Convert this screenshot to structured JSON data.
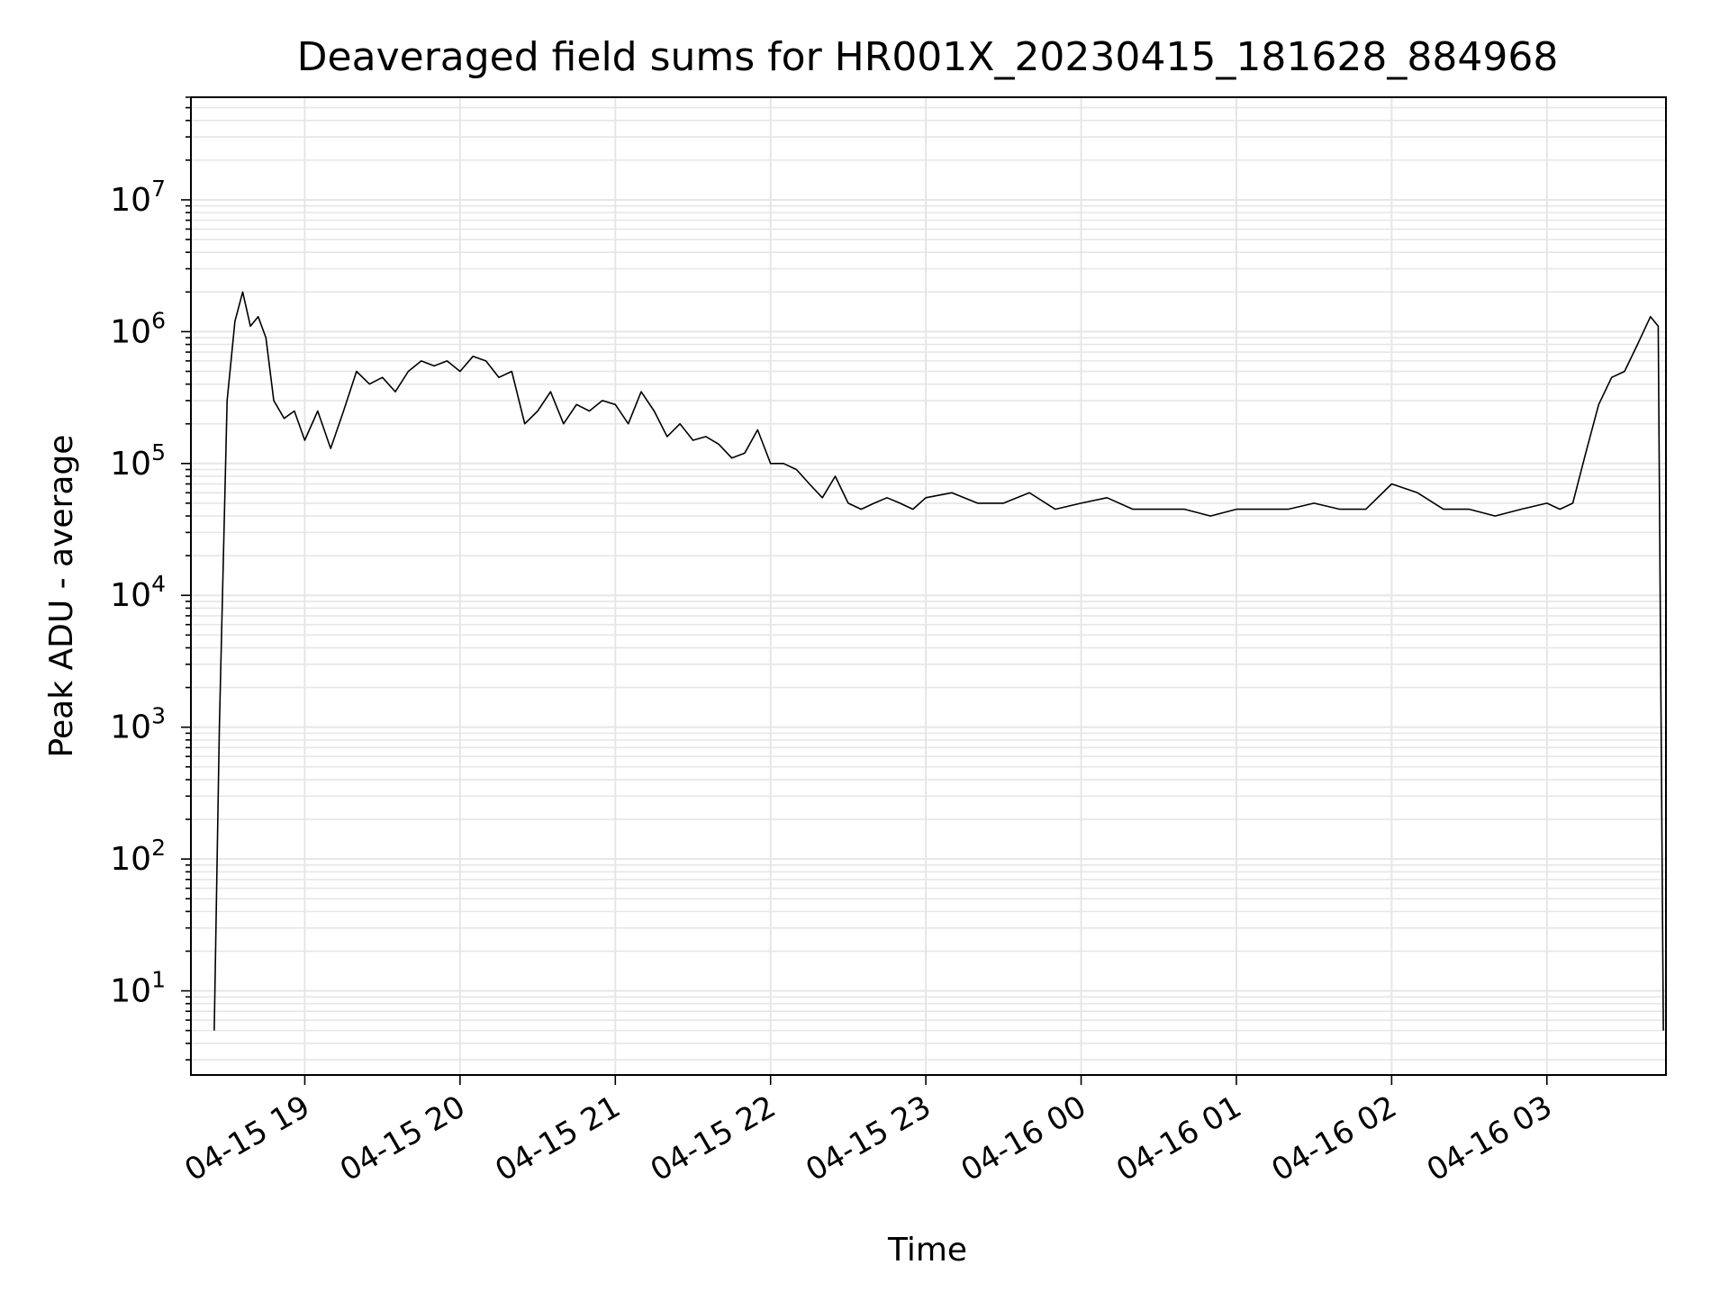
{
  "chart_data": {
    "type": "line",
    "title": "Deaveraged field sums for HR001X_20230415_181628_884968",
    "xlabel": "Time",
    "ylabel": "Peak ADU - average",
    "yscale": "log",
    "ylim": [
      2.3,
      60000000
    ],
    "xlim": [
      "2023-04-15 18:16",
      "2023-04-16 03:46"
    ],
    "grid": true,
    "line_color": "#000000",
    "grid_color": "#e6e6e6",
    "x_ticks": [
      {
        "t": "2023-04-15 19:00",
        "label": "04-15 19"
      },
      {
        "t": "2023-04-15 20:00",
        "label": "04-15 20"
      },
      {
        "t": "2023-04-15 21:00",
        "label": "04-15 21"
      },
      {
        "t": "2023-04-15 22:00",
        "label": "04-15 22"
      },
      {
        "t": "2023-04-15 23:00",
        "label": "04-15 23"
      },
      {
        "t": "2023-04-16 00:00",
        "label": "04-16 00"
      },
      {
        "t": "2023-04-16 01:00",
        "label": "04-16 01"
      },
      {
        "t": "2023-04-16 02:00",
        "label": "04-16 02"
      },
      {
        "t": "2023-04-16 03:00",
        "label": "04-16 03"
      }
    ],
    "y_ticks": [
      {
        "value": 10,
        "base": "10",
        "exp": "1"
      },
      {
        "value": 100,
        "base": "10",
        "exp": "2"
      },
      {
        "value": 1000,
        "base": "10",
        "exp": "3"
      },
      {
        "value": 10000,
        "base": "10",
        "exp": "4"
      },
      {
        "value": 100000,
        "base": "10",
        "exp": "5"
      },
      {
        "value": 1000000,
        "base": "10",
        "exp": "6"
      },
      {
        "value": 10000000,
        "base": "10",
        "exp": "7"
      }
    ],
    "series": [
      {
        "x": [
          "2023-04-15 18:25",
          "2023-04-15 18:27",
          "2023-04-15 18:30",
          "2023-04-15 18:33",
          "2023-04-15 18:36",
          "2023-04-15 18:39",
          "2023-04-15 18:42",
          "2023-04-15 18:45",
          "2023-04-15 18:48",
          "2023-04-15 18:52",
          "2023-04-15 18:56",
          "2023-04-15 19:00",
          "2023-04-15 19:05",
          "2023-04-15 19:10",
          "2023-04-15 19:15",
          "2023-04-15 19:20",
          "2023-04-15 19:25",
          "2023-04-15 19:30",
          "2023-04-15 19:35",
          "2023-04-15 19:40",
          "2023-04-15 19:45",
          "2023-04-15 19:50",
          "2023-04-15 19:55",
          "2023-04-15 20:00",
          "2023-04-15 20:05",
          "2023-04-15 20:10",
          "2023-04-15 20:15",
          "2023-04-15 20:20",
          "2023-04-15 20:25",
          "2023-04-15 20:30",
          "2023-04-15 20:35",
          "2023-04-15 20:40",
          "2023-04-15 20:45",
          "2023-04-15 20:50",
          "2023-04-15 20:55",
          "2023-04-15 21:00",
          "2023-04-15 21:05",
          "2023-04-15 21:10",
          "2023-04-15 21:15",
          "2023-04-15 21:20",
          "2023-04-15 21:25",
          "2023-04-15 21:30",
          "2023-04-15 21:35",
          "2023-04-15 21:40",
          "2023-04-15 21:45",
          "2023-04-15 21:50",
          "2023-04-15 21:55",
          "2023-04-15 22:00",
          "2023-04-15 22:05",
          "2023-04-15 22:10",
          "2023-04-15 22:15",
          "2023-04-15 22:20",
          "2023-04-15 22:25",
          "2023-04-15 22:30",
          "2023-04-15 22:35",
          "2023-04-15 22:40",
          "2023-04-15 22:45",
          "2023-04-15 22:50",
          "2023-04-15 22:55",
          "2023-04-15 23:00",
          "2023-04-15 23:10",
          "2023-04-15 23:20",
          "2023-04-15 23:30",
          "2023-04-15 23:40",
          "2023-04-15 23:50",
          "2023-04-16 00:00",
          "2023-04-16 00:10",
          "2023-04-16 00:20",
          "2023-04-16 00:30",
          "2023-04-16 00:40",
          "2023-04-16 00:50",
          "2023-04-16 01:00",
          "2023-04-16 01:10",
          "2023-04-16 01:20",
          "2023-04-16 01:30",
          "2023-04-16 01:40",
          "2023-04-16 01:50",
          "2023-04-16 02:00",
          "2023-04-16 02:10",
          "2023-04-16 02:20",
          "2023-04-16 02:30",
          "2023-04-16 02:40",
          "2023-04-16 02:50",
          "2023-04-16 03:00",
          "2023-04-16 03:05",
          "2023-04-16 03:10",
          "2023-04-16 03:15",
          "2023-04-16 03:20",
          "2023-04-16 03:25",
          "2023-04-16 03:30",
          "2023-04-16 03:35",
          "2023-04-16 03:40",
          "2023-04-16 03:43",
          "2023-04-16 03:45"
        ],
        "y": [
          5,
          1000,
          300000,
          1200000,
          2000000,
          1100000,
          1300000,
          900000,
          300000,
          220000,
          250000,
          150000,
          250000,
          130000,
          250000,
          500000,
          400000,
          450000,
          350000,
          500000,
          600000,
          550000,
          600000,
          500000,
          650000,
          600000,
          450000,
          500000,
          200000,
          250000,
          350000,
          200000,
          280000,
          250000,
          300000,
          280000,
          200000,
          350000,
          250000,
          160000,
          200000,
          150000,
          160000,
          140000,
          110000,
          120000,
          180000,
          100000,
          100000,
          90000,
          70000,
          55000,
          80000,
          50000,
          45000,
          50000,
          55000,
          50000,
          45000,
          55000,
          60000,
          50000,
          50000,
          60000,
          45000,
          50000,
          55000,
          45000,
          45000,
          45000,
          40000,
          45000,
          45000,
          45000,
          50000,
          45000,
          45000,
          70000,
          60000,
          45000,
          45000,
          40000,
          45000,
          50000,
          45000,
          50000,
          120000,
          280000,
          450000,
          500000,
          800000,
          1300000,
          1100000,
          5
        ]
      }
    ]
  }
}
